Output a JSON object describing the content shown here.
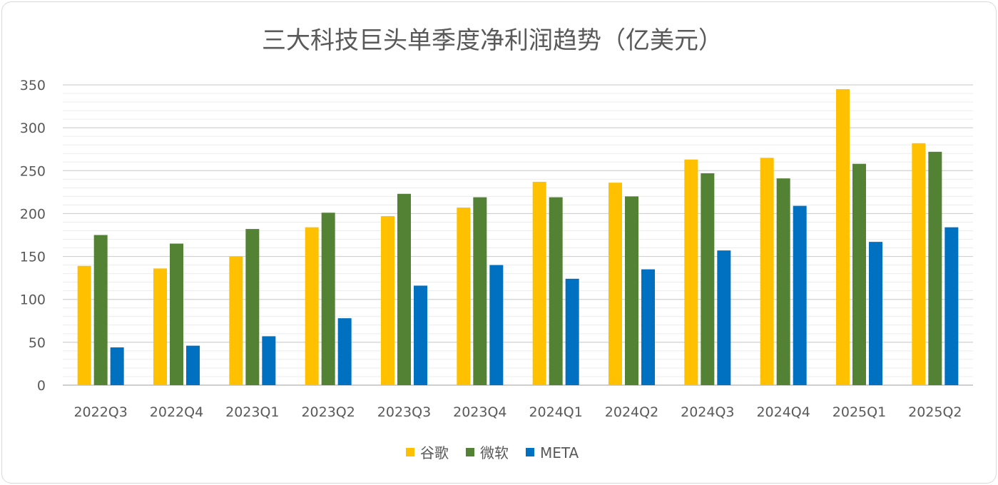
{
  "chart_data": {
    "type": "bar",
    "title": "三大科技巨头单季度净利润趋势（亿美元）",
    "categories": [
      "2022Q3",
      "2022Q4",
      "2023Q1",
      "2023Q2",
      "2023Q3",
      "2023Q4",
      "2024Q1",
      "2024Q2",
      "2024Q3",
      "2024Q4",
      "2025Q1",
      "2025Q2"
    ],
    "series": [
      {
        "name": "谷歌",
        "color": "#FFC000",
        "values": [
          139,
          136,
          150,
          184,
          197,
          207,
          237,
          236,
          263,
          265,
          345,
          282
        ]
      },
      {
        "name": "微软",
        "color": "#548235",
        "values": [
          175,
          165,
          182,
          201,
          223,
          219,
          219,
          220,
          247,
          241,
          258,
          272
        ]
      },
      {
        "name": "META",
        "color": "#0070C0",
        "values": [
          44,
          46,
          57,
          78,
          116,
          140,
          124,
          135,
          157,
          209,
          167,
          184
        ]
      }
    ],
    "ylim": [
      0,
      350
    ],
    "yticks": [
      0,
      50,
      100,
      150,
      200,
      250,
      300,
      350
    ],
    "grid": true,
    "legend": "bottom"
  }
}
